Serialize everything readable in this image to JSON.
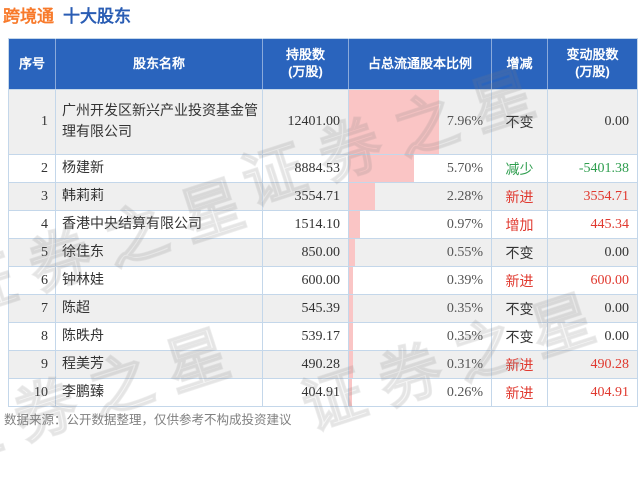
{
  "title": {
    "stock": "跨境通",
    "suffix": "十大股东"
  },
  "colors": {
    "header_bg": "#2a64bd",
    "title_orange": "#f87a2b",
    "title_blue": "#2a5db4",
    "bar_pink": "#fac5c5",
    "increase_red": "#e0392f",
    "decrease_green": "#2f9e4f",
    "row_stripe_gray": "#efefef",
    "table_border": "#c4d7ea",
    "footer_gray": "#808080"
  },
  "watermark": {
    "text": "证券之星"
  },
  "footer": {
    "note": "数据来源：公开数据整理，仅供参考不构成投资建议"
  },
  "table": {
    "bar_scale": 8.0,
    "headers": [
      "序号",
      "股东名称",
      "持股数\n(万股)",
      "占总流通股本比例",
      "增减",
      "变动股数\n(万股)"
    ],
    "rows": [
      {
        "no": "1",
        "name": "广州开发区新兴产业投资基金管理有限公司",
        "shares": "12401.00",
        "pct": "7.96%",
        "pct_value": 7.96,
        "change": "不变",
        "change_type": "flat",
        "delta": "0.00"
      },
      {
        "no": "2",
        "name": "杨建新",
        "shares": "8884.53",
        "pct": "5.70%",
        "pct_value": 5.7,
        "change": "减少",
        "change_type": "down",
        "delta": "-5401.38"
      },
      {
        "no": "3",
        "name": "韩莉莉",
        "shares": "3554.71",
        "pct": "2.28%",
        "pct_value": 2.28,
        "change": "新进",
        "change_type": "up",
        "delta": "3554.71"
      },
      {
        "no": "4",
        "name": "香港中央结算有限公司",
        "shares": "1514.10",
        "pct": "0.97%",
        "pct_value": 0.97,
        "change": "增加",
        "change_type": "up",
        "delta": "445.34"
      },
      {
        "no": "5",
        "name": "徐佳东",
        "shares": "850.00",
        "pct": "0.55%",
        "pct_value": 0.55,
        "change": "不变",
        "change_type": "flat",
        "delta": "0.00"
      },
      {
        "no": "6",
        "name": "钟林娃",
        "shares": "600.00",
        "pct": "0.39%",
        "pct_value": 0.39,
        "change": "新进",
        "change_type": "up",
        "delta": "600.00"
      },
      {
        "no": "7",
        "name": "陈超",
        "shares": "545.39",
        "pct": "0.35%",
        "pct_value": 0.35,
        "change": "不变",
        "change_type": "flat",
        "delta": "0.00"
      },
      {
        "no": "8",
        "name": "陈昳舟",
        "shares": "539.17",
        "pct": "0.35%",
        "pct_value": 0.35,
        "change": "不变",
        "change_type": "flat",
        "delta": "0.00"
      },
      {
        "no": "9",
        "name": "程美芳",
        "shares": "490.28",
        "pct": "0.31%",
        "pct_value": 0.31,
        "change": "新进",
        "change_type": "up",
        "delta": "490.28"
      },
      {
        "no": "10",
        "name": "李鹏臻",
        "shares": "404.91",
        "pct": "0.26%",
        "pct_value": 0.26,
        "change": "新进",
        "change_type": "up",
        "delta": "404.91"
      }
    ]
  },
  "chart_data": {
    "type": "table",
    "title": "跨境通 十大股东",
    "columns": [
      "序号",
      "股东名称",
      "持股数(万股)",
      "占总流通股本比例",
      "增减",
      "变动股数(万股)"
    ],
    "rows": [
      [
        1,
        "广州开发区新兴产业投资基金管理有限公司",
        12401.0,
        "7.96%",
        "不变",
        0.0
      ],
      [
        2,
        "杨建新",
        8884.53,
        "5.70%",
        "减少",
        -5401.38
      ],
      [
        3,
        "韩莉莉",
        3554.71,
        "2.28%",
        "新进",
        3554.71
      ],
      [
        4,
        "香港中央结算有限公司",
        1514.1,
        "0.97%",
        "增加",
        445.34
      ],
      [
        5,
        "徐佳东",
        850.0,
        "0.55%",
        "不变",
        0.0
      ],
      [
        6,
        "钟林娃",
        600.0,
        "0.39%",
        "新进",
        600.0
      ],
      [
        7,
        "陈超",
        545.39,
        "0.35%",
        "不变",
        0.0
      ],
      [
        8,
        "陈昳舟",
        539.17,
        "0.35%",
        "不变",
        0.0
      ],
      [
        9,
        "程美芳",
        490.28,
        "0.31%",
        "新进",
        490.28
      ],
      [
        10,
        "李鹏臻",
        404.91,
        "0.26%",
        "新进",
        404.91
      ]
    ],
    "bar_column": "占总流通股本比例",
    "bar_values_pct": [
      7.96,
      5.7,
      2.28,
      0.97,
      0.55,
      0.39,
      0.35,
      0.35,
      0.31,
      0.26
    ],
    "bar_color": "#fac5c5",
    "legend_position": "none",
    "source_note": "数据来源：公开数据整理，仅供参考不构成投资建议"
  }
}
